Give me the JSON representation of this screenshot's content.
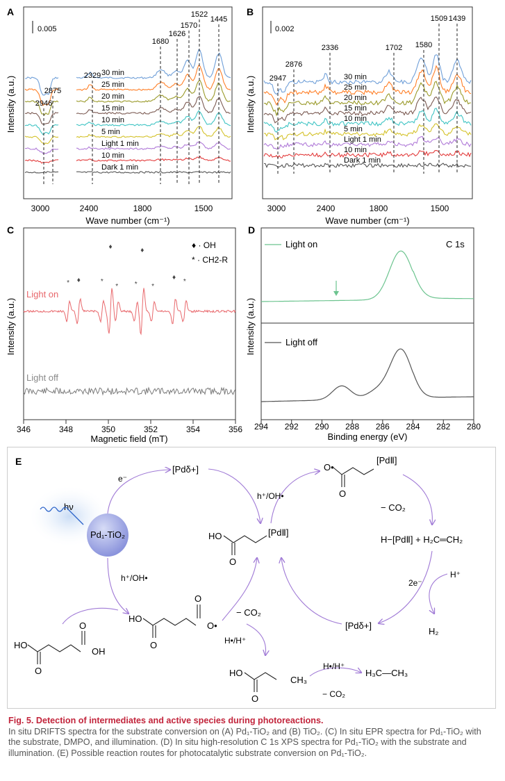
{
  "panel_labels": {
    "A": "A",
    "B": "B",
    "C": "C",
    "D": "D",
    "E": "E"
  },
  "chart_data": [
    {
      "id": "A",
      "type": "line",
      "title": "",
      "xlabel": "Wave number (cm⁻¹)",
      "ylabel": "Intensity (a.u.)",
      "x_ticks": [
        "3000",
        "2400",
        "1800",
        "1500"
      ],
      "scale_bar": "0.005",
      "series_labels": [
        "30 min",
        "25 min",
        "20 min",
        "15 min",
        "10 min",
        "5 min",
        "Light 1 min",
        "10 min",
        "Dark 1 min"
      ],
      "peak_labels": [
        "2946",
        "2875",
        "2329",
        "1680",
        "1626",
        "1570",
        "1522",
        "1445"
      ],
      "series_colors": [
        "#6f9fd8",
        "#ff7f27",
        "#9a9a2a",
        "#7b5a52",
        "#3fc4c4",
        "#d4c22a",
        "#b07ad8",
        "#e33c3c",
        "#555555"
      ]
    },
    {
      "id": "B",
      "type": "line",
      "xlabel": "Wave number (cm⁻¹)",
      "ylabel": "Intensity (a.u.)",
      "x_ticks": [
        "3000",
        "2400",
        "1800",
        "1500"
      ],
      "scale_bar": "0.002",
      "series_labels": [
        "30 min",
        "25 min",
        "20 min",
        "15 min",
        "10 min",
        "5 min",
        "Light 1 min",
        "10 min",
        "Dark 1 min"
      ],
      "peak_labels": [
        "2947",
        "2876",
        "2336",
        "1702",
        "1580",
        "1509",
        "1439"
      ],
      "series_colors": [
        "#6f9fd8",
        "#ff7f27",
        "#9a9a2a",
        "#7b5a52",
        "#3fc4c4",
        "#d4c22a",
        "#b07ad8",
        "#e33c3c",
        "#555555"
      ]
    },
    {
      "id": "C",
      "type": "line",
      "xlabel": "Magnetic field (mT)",
      "ylabel": "Intensity (a.u.)",
      "x_ticks": [
        "346",
        "348",
        "350",
        "352",
        "354",
        "356"
      ],
      "xlim": [
        346,
        356
      ],
      "series": [
        {
          "name": "Light on",
          "color": "#e8676b"
        },
        {
          "name": "Light off",
          "color": "#7a7a7a"
        }
      ],
      "legend": [
        "♦ · OH",
        "* · CH2-R"
      ]
    },
    {
      "id": "D",
      "type": "line",
      "xlabel": "Binding energy (eV)",
      "ylabel": "Intensity (a.u.)",
      "x_ticks": [
        "294",
        "292",
        "290",
        "288",
        "286",
        "284",
        "282",
        "280"
      ],
      "xlim": [
        294,
        280
      ],
      "series": [
        {
          "name": "Light on",
          "color": "#6cc48f",
          "peak_ev": 284.8
        },
        {
          "name": "Light off",
          "color": "#555555",
          "peak_ev": 284.8
        }
      ],
      "annotation": "C 1s"
    }
  ],
  "scheme": {
    "e_minus": "e⁻",
    "pd_delta": "[Pdδ+]",
    "h_oh_top": "h⁺/OH•",
    "pd_ii_right": "[PdⅡ]",
    "minus_co2_top": "− CO₂",
    "hv": "hν",
    "catalyst": "Pd₁-TiO₂",
    "center_ho": "HO",
    "center_pd": "[PdⅡ]",
    "h_pd_ethylene": "H−[PdⅡ] + H₂C═CH₂",
    "two_e": "2e⁻",
    "h_plus": "H⁺",
    "h_oh_left": "h⁺/OH•",
    "pd_delta_bottom": "[Pdδ+]",
    "h2": "H₂",
    "minus_co2_mid": "− CO₂",
    "h_radical": "H•/H⁺",
    "ethane": "H₃C—CH₃",
    "h_radical2": "H•/H⁺",
    "minus_co2_bottom": "− CO₂",
    "ho": "HO",
    "oh": "OH",
    "o": "O",
    "ch3": "CH₃",
    "o_rad": "O•"
  },
  "caption": {
    "fig": "Fig. 5.",
    "title": "Detection of intermediates and active species during photoreactions.",
    "text": "In situ DRIFTS spectra for the substrate conversion on (A) Pd₁-TiO₂ and (B) TiO₂. (C) In situ EPR spectra for Pd₁-TiO₂ with the substrate, DMPO, and illumination. (D) In situ high-resolution C 1s XPS spectra for Pd₁-TiO₂ with the substrate and illumination. (E) Possible reaction routes for photocatalytic substrate conversion on Pd₁-TiO₂."
  }
}
